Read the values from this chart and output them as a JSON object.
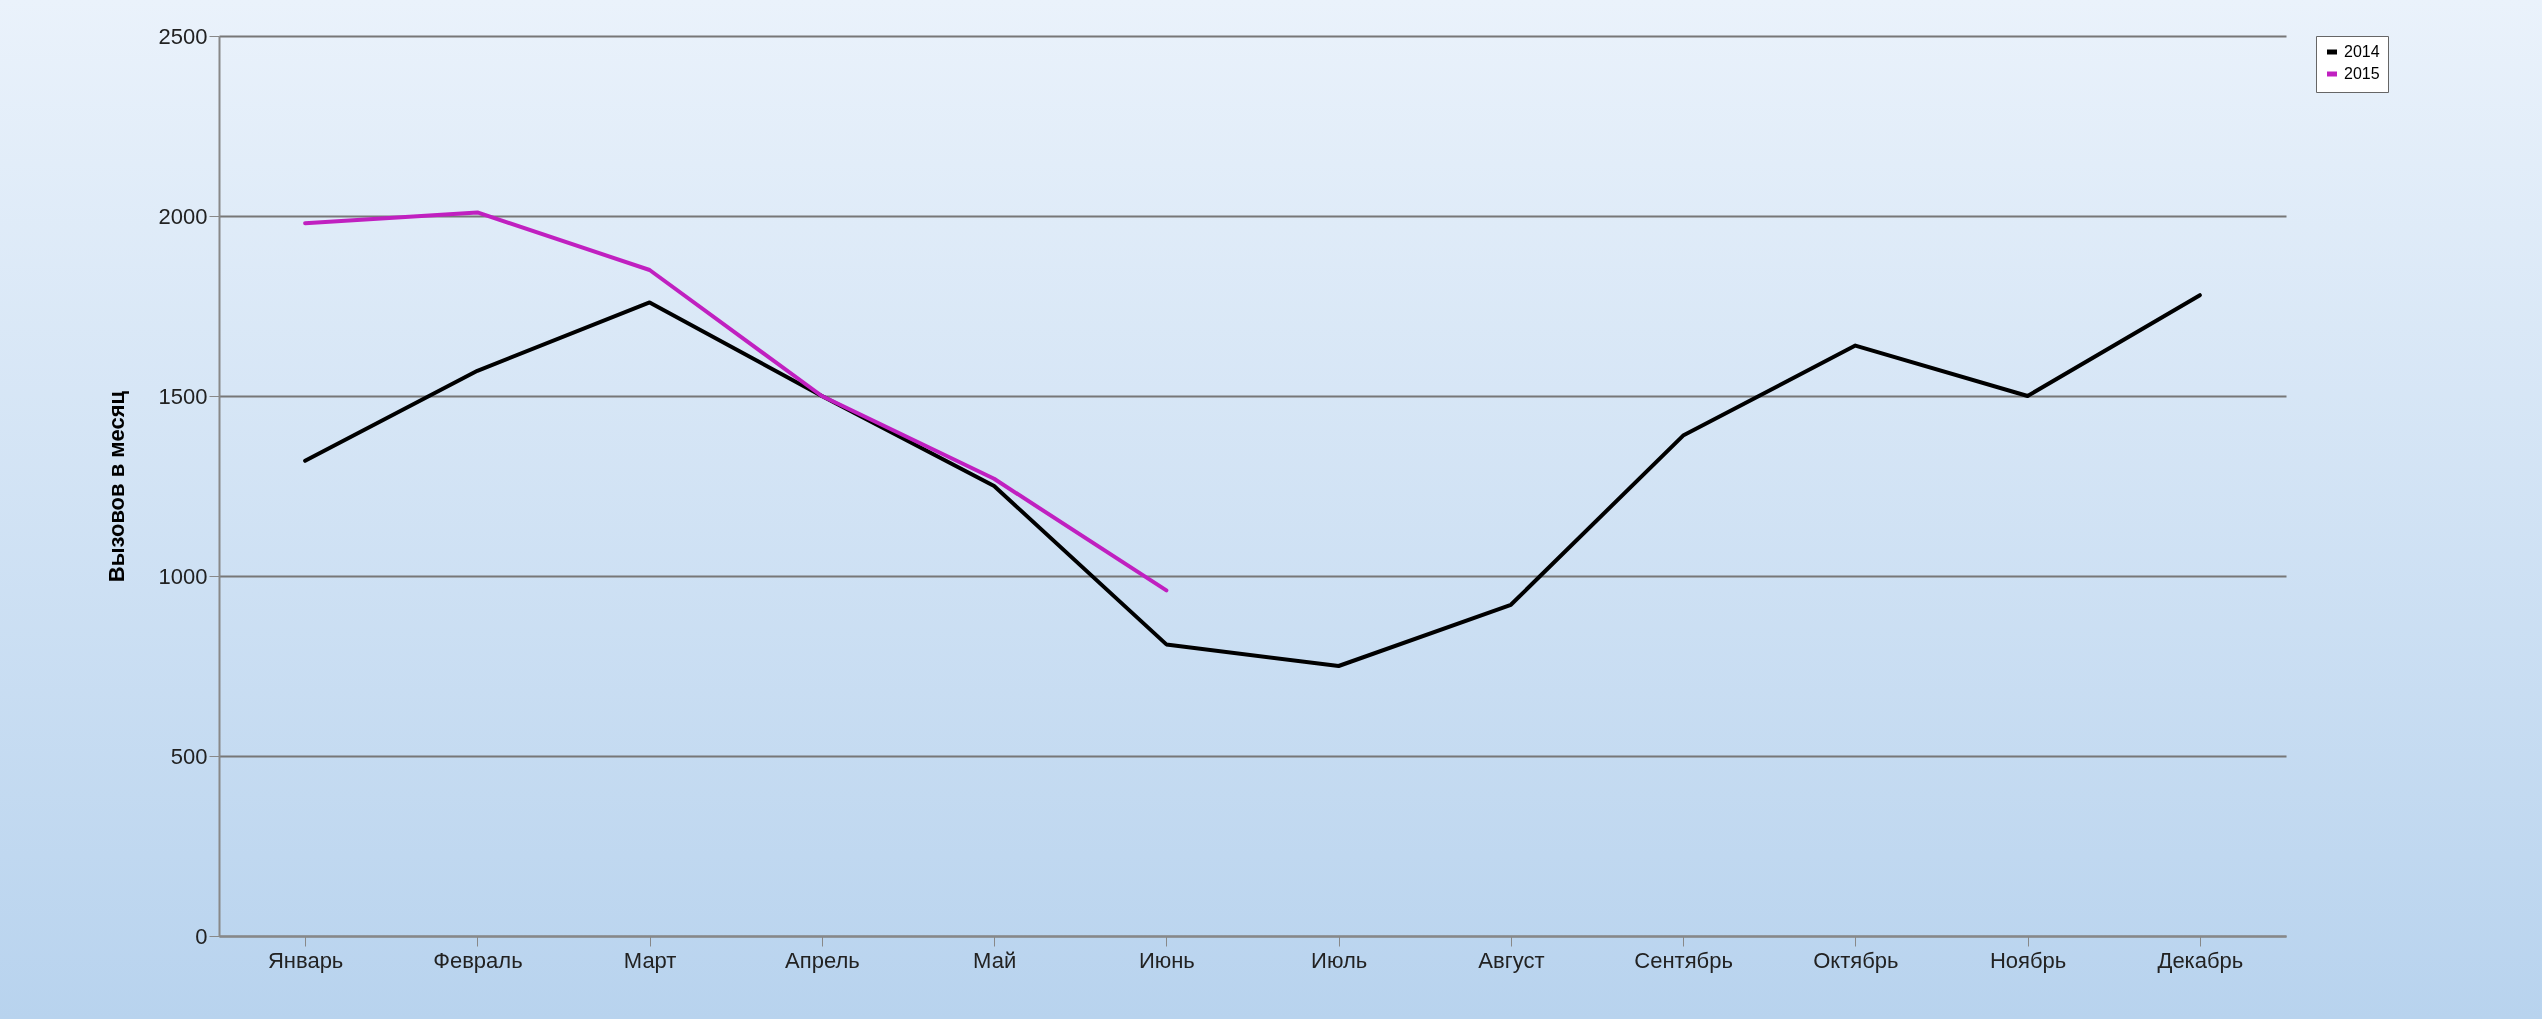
{
  "chart_data": {
    "type": "line",
    "ylabel": "Вызовов в месяц",
    "categories": [
      "Январь",
      "Февраль",
      "Март",
      "Апрель",
      "Май",
      "Июнь",
      "Июль",
      "Август",
      "Сентябрь",
      "Октябрь",
      "Ноябрь",
      "Декабрь"
    ],
    "series": [
      {
        "name": "2014",
        "color": "#000000",
        "values": [
          1320,
          1570,
          1760,
          1500,
          1250,
          810,
          750,
          920,
          1390,
          1640,
          1500,
          1780
        ]
      },
      {
        "name": "2015",
        "color": "#c020c0",
        "values": [
          1980,
          2010,
          1850,
          1500,
          1270,
          960,
          null,
          null,
          null,
          null,
          null,
          null
        ]
      }
    ],
    "ylim": [
      0,
      2500
    ],
    "yticks": [
      0,
      500,
      1000,
      1500,
      2000,
      2500
    ],
    "grid": "y",
    "legend": "right",
    "line_style": "solid",
    "marker": "none"
  }
}
